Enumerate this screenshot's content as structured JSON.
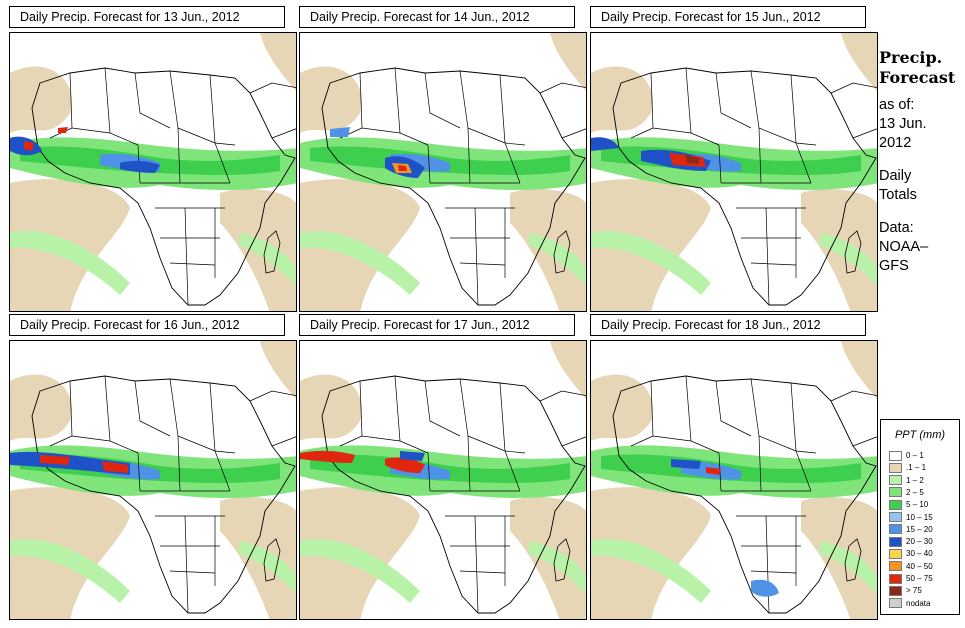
{
  "panels": [
    {
      "title": "Daily Precip. Forecast for  13 Jun., 2012"
    },
    {
      "title": "Daily Precip. Forecast for  14 Jun., 2012"
    },
    {
      "title": "Daily Precip. Forecast for  15 Jun., 2012"
    },
    {
      "title": "Daily Precip. Forecast for  16 Jun., 2012"
    },
    {
      "title": "Daily Precip. Forecast for  17 Jun., 2012"
    },
    {
      "title": "Daily Precip. Forecast for  18 Jun., 2012"
    }
  ],
  "side": {
    "title_line1": "Precip.",
    "title_line2": "Forecast",
    "asof_line1": "as of:",
    "asof_line2": "13 Jun.",
    "asof_line3": "2012",
    "totals_line1": "Daily",
    "totals_line2": "Totals",
    "data_line1": "Data:",
    "data_line2": "NOAA–",
    "data_line3": "GFS"
  },
  "legend": {
    "title": "PPT (mm)",
    "items": [
      {
        "label": "0 – 1",
        "color": "#ffffff"
      },
      {
        "label": ".1 – 1",
        "color": "#e6d6b6"
      },
      {
        "label": "1 – 2",
        "color": "#b8f2a8"
      },
      {
        "label": "2 – 5",
        "color": "#7fe57a"
      },
      {
        "label": "5 – 10",
        "color": "#3ecf4e"
      },
      {
        "label": "10 – 15",
        "color": "#94c5f0"
      },
      {
        "label": "15 – 20",
        "color": "#4f92e6"
      },
      {
        "label": "20 – 30",
        "color": "#1f52c6"
      },
      {
        "label": "30 – 40",
        "color": "#f7d54c"
      },
      {
        "label": "40 – 50",
        "color": "#f3961e"
      },
      {
        "label": "50 – 75",
        "color": "#e0260e"
      },
      {
        "label": "> 75",
        "color": "#8c2a1a"
      },
      {
        "label": "nodata",
        "color": "#cfcfcf"
      }
    ]
  }
}
